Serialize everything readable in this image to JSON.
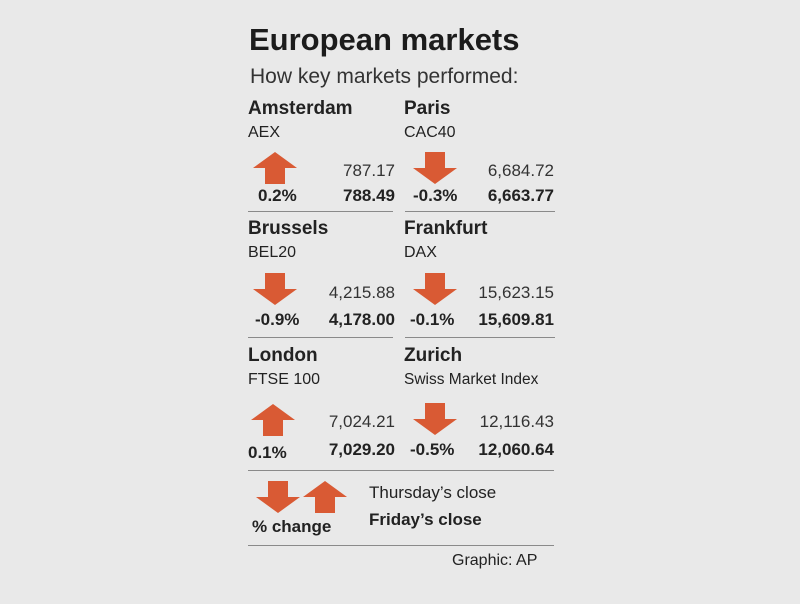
{
  "title": "European markets",
  "subtitle": "How key markets performed:",
  "colors": {
    "arrow": "#d95a34",
    "background": "#e9e9e9"
  },
  "markets": [
    {
      "city": "Amsterdam",
      "index": "AEX",
      "direction": "up",
      "change": "0.2%",
      "previous": "787.17",
      "close": "788.49"
    },
    {
      "city": "Paris",
      "index": "CAC40",
      "direction": "down",
      "change": "-0.3%",
      "previous": "6,684.72",
      "close": "6,663.77"
    },
    {
      "city": "Brussels",
      "index": "BEL20",
      "direction": "down",
      "change": "-0.9%",
      "previous": "4,215.88",
      "close": "4,178.00"
    },
    {
      "city": "Frankfurt",
      "index": "DAX",
      "direction": "down",
      "change": "-0.1%",
      "previous": "15,623.15",
      "close": "15,609.81"
    },
    {
      "city": "London",
      "index": "FTSE 100",
      "direction": "up",
      "change": "0.1%",
      "previous": "7,024.21",
      "close": "7,029.20"
    },
    {
      "city": "Zurich",
      "index": "Swiss Market Index",
      "direction": "down",
      "change": "-0.5%",
      "previous": "12,116.43",
      "close": "12,060.64"
    }
  ],
  "legend": {
    "change_label": "% change",
    "previous_label": "Thursday’s close",
    "close_label": "Friday’s close"
  },
  "credit": "Graphic: AP"
}
